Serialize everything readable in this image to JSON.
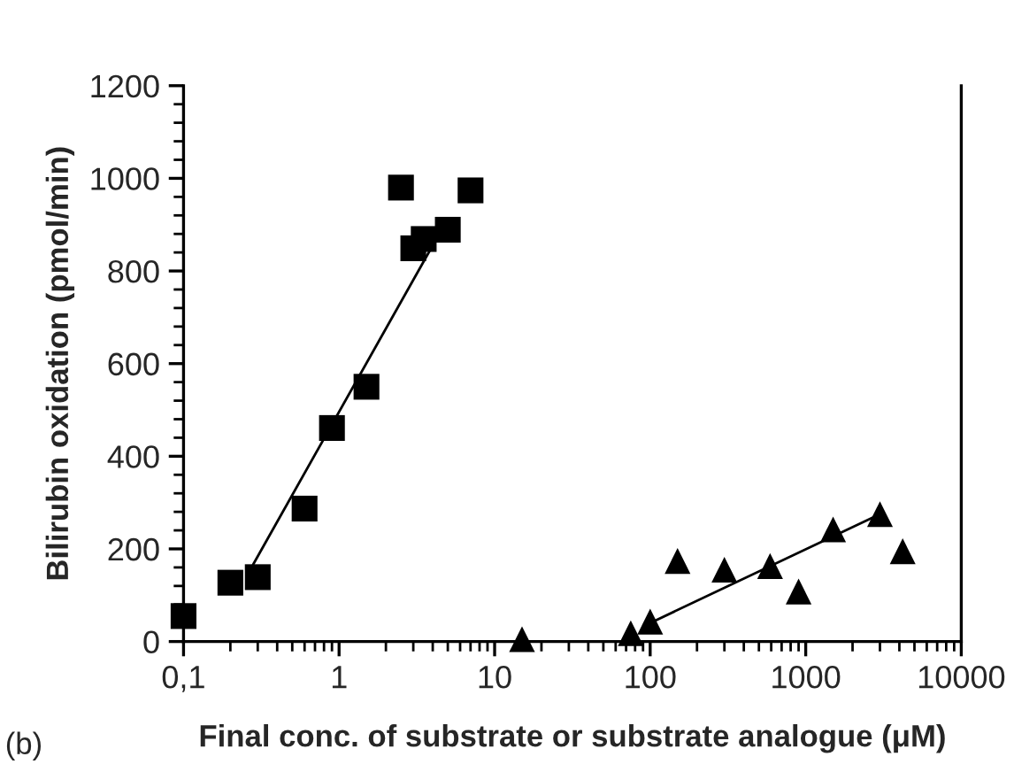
{
  "chart_data": {
    "type": "scatter",
    "xlabel": "Final conc. of substrate or substrate analogue (μM)",
    "ylabel": "Bilirubin oxidation (pmol/min)",
    "log": "x",
    "xlim": [
      0.1,
      10000
    ],
    "xticks": [
      {
        "value": 0.1,
        "label": "0,1"
      },
      1,
      10,
      100,
      1000,
      10000
    ],
    "ylim": [
      0,
      1200
    ],
    "yticks": [
      0,
      200,
      400,
      600,
      800,
      1000,
      1200
    ],
    "grid": false,
    "legend": false,
    "annotations": [
      "(b)"
    ],
    "series": [
      {
        "marker": "square",
        "color": "#000000",
        "x": [
          0.1,
          0.2,
          0.3,
          0.6,
          0.9,
          1.5,
          2.5,
          3.0,
          3.5,
          5.0,
          7.0
        ],
        "values": [
          55,
          127,
          139,
          287,
          461,
          550,
          980,
          849,
          869,
          889,
          974
        ]
      },
      {
        "type": "line",
        "marker": "none",
        "line_style": "solid",
        "color": "#000000",
        "x": [
          0.28,
          4.4
        ],
        "values": [
          166,
          880
        ]
      },
      {
        "marker": "triangle",
        "color": "#000000",
        "x": [
          15,
          75,
          100,
          150,
          300,
          590,
          900,
          1500,
          3000,
          4200
        ],
        "values": [
          5,
          18,
          43,
          174,
          155,
          163,
          108,
          242,
          275,
          195
        ]
      },
      {
        "type": "line",
        "marker": "none",
        "line_style": "solid",
        "color": "#000000",
        "x": [
          100,
          3000
        ],
        "values": [
          40,
          275
        ]
      }
    ]
  }
}
